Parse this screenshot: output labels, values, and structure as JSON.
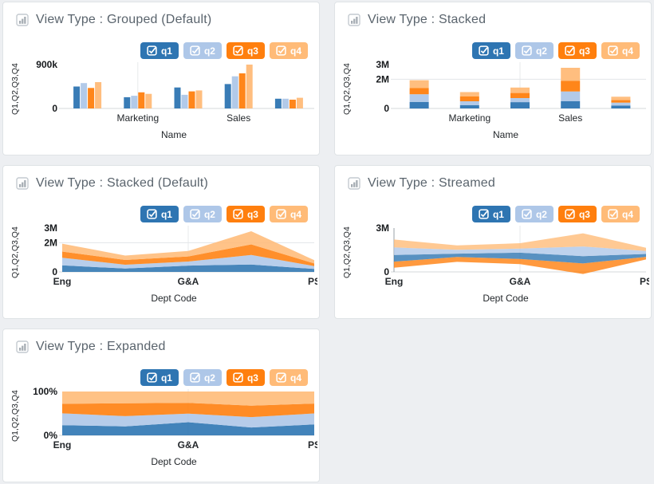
{
  "page": {
    "background_color": "#edeff2",
    "card_background": "#ffffff",
    "card_border_color": "#dfe3e6"
  },
  "colors": {
    "q1": "#2e75b2",
    "q2": "#aec7e8",
    "q3": "#ff7f0e",
    "q4": "#ffbb78"
  },
  "legend": {
    "position": "top-right",
    "items": [
      {
        "id": "q1",
        "label": "q1",
        "checked": true,
        "color": "#2e75b2",
        "text_color": "#ffffff"
      },
      {
        "id": "q2",
        "label": "q2",
        "checked": true,
        "color": "#aec7e8",
        "text_color": "#ffffff"
      },
      {
        "id": "q3",
        "label": "q3",
        "checked": true,
        "color": "#ff7f0e",
        "text_color": "#ffffff"
      },
      {
        "id": "q4",
        "label": "q4",
        "checked": true,
        "color": "#ffbb78",
        "text_color": "#ffffff"
      }
    ]
  },
  "chart_data": [
    {
      "type": "bar",
      "variant": "grouped",
      "title": "View Type : Grouped (Default)",
      "xlabel": "Name",
      "ylabel": "Q1,Q2,Q3,Q4",
      "categories": [
        "Eng",
        "Marketing",
        "G&A",
        "Sales",
        "PS"
      ],
      "visible_category_labels": [
        "Marketing",
        "Sales"
      ],
      "x_gridline_category": "Marketing",
      "series": [
        {
          "name": "q1",
          "color": "#2e75b2",
          "values": [
            450000,
            230000,
            430000,
            500000,
            200000
          ]
        },
        {
          "name": "q2",
          "color": "#aec7e8",
          "values": [
            520000,
            260000,
            280000,
            660000,
            200000
          ]
        },
        {
          "name": "q3",
          "color": "#ff7f0e",
          "values": [
            420000,
            330000,
            350000,
            720000,
            180000
          ]
        },
        {
          "name": "q4",
          "color": "#ffbb78",
          "values": [
            540000,
            300000,
            370000,
            900000,
            220000
          ]
        }
      ],
      "ylim": [
        0,
        900000
      ],
      "yticks": [
        {
          "value": 900000,
          "label": "900k"
        },
        {
          "value": 0,
          "label": "0"
        }
      ],
      "grid": true,
      "legend_position": "top-right"
    },
    {
      "type": "bar",
      "variant": "stacked",
      "title": "View Type : Stacked",
      "xlabel": "Name",
      "ylabel": "Q1,Q2,Q3,Q4",
      "categories": [
        "Eng",
        "Marketing",
        "G&A",
        "Sales",
        "PS"
      ],
      "visible_category_labels": [
        "Marketing",
        "Sales"
      ],
      "x_gridline_category": "G&A",
      "series": [
        {
          "name": "q1",
          "color": "#2e75b2",
          "values": [
            450000,
            230000,
            430000,
            500000,
            200000
          ]
        },
        {
          "name": "q2",
          "color": "#aec7e8",
          "values": [
            520000,
            260000,
            280000,
            660000,
            200000
          ]
        },
        {
          "name": "q3",
          "color": "#ff7f0e",
          "values": [
            420000,
            330000,
            350000,
            720000,
            180000
          ]
        },
        {
          "name": "q4",
          "color": "#ffbb78",
          "values": [
            540000,
            300000,
            370000,
            900000,
            220000
          ]
        }
      ],
      "ylim": [
        0,
        3000000
      ],
      "yticks": [
        {
          "value": 3000000,
          "label": "3M"
        },
        {
          "value": 2000000,
          "label": "2M"
        },
        {
          "value": 0,
          "label": "0"
        }
      ],
      "grid": true,
      "legend_position": "top-right"
    },
    {
      "type": "area",
      "variant": "stacked-area",
      "title": "View Type : Stacked (Default)",
      "xlabel": "Dept Code",
      "ylabel": "Q1,Q2,Q3,Q4",
      "categories": [
        "Eng",
        "Marketing",
        "G&A",
        "Sales",
        "PS"
      ],
      "visible_category_labels": [
        "Eng",
        "G&A",
        "PS"
      ],
      "x_gridline_category": "G&A",
      "series": [
        {
          "name": "q1",
          "color": "#2e75b2",
          "values": [
            450000,
            230000,
            430000,
            500000,
            200000
          ]
        },
        {
          "name": "q2",
          "color": "#aec7e8",
          "values": [
            520000,
            260000,
            280000,
            660000,
            200000
          ]
        },
        {
          "name": "q3",
          "color": "#ff7f0e",
          "values": [
            420000,
            330000,
            350000,
            720000,
            180000
          ]
        },
        {
          "name": "q4",
          "color": "#ffbb78",
          "values": [
            540000,
            300000,
            370000,
            900000,
            220000
          ]
        }
      ],
      "ylim": [
        0,
        3000000
      ],
      "yticks": [
        {
          "value": 3000000,
          "label": "3M"
        },
        {
          "value": 2000000,
          "label": "2M"
        },
        {
          "value": 0,
          "label": "0"
        }
      ],
      "grid": true,
      "legend_position": "top-right"
    },
    {
      "type": "area",
      "variant": "stream",
      "title": "View Type : Streamed",
      "xlabel": "Dept Code",
      "ylabel": "Q1,Q2,Q3,Q4",
      "categories": [
        "Eng",
        "Marketing",
        "G&A",
        "Sales",
        "PS"
      ],
      "visible_category_labels": [
        "Eng",
        "G&A",
        "PS"
      ],
      "x_gridline_category": "G&A",
      "stack_order": [
        "q3",
        "q1",
        "q2",
        "q4"
      ],
      "stream_center": 1250000,
      "series": [
        {
          "name": "q1",
          "color": "#2e75b2",
          "values": [
            450000,
            230000,
            430000,
            500000,
            200000
          ]
        },
        {
          "name": "q2",
          "color": "#aec7e8",
          "values": [
            520000,
            260000,
            280000,
            660000,
            200000
          ]
        },
        {
          "name": "q3",
          "color": "#ff7f0e",
          "values": [
            420000,
            330000,
            350000,
            720000,
            180000
          ]
        },
        {
          "name": "q4",
          "color": "#ffbb78",
          "values": [
            540000,
            300000,
            370000,
            900000,
            220000
          ]
        }
      ],
      "ylim": [
        0,
        3000000
      ],
      "yticks": [
        {
          "value": 3000000,
          "label": "3M"
        },
        {
          "value": 0,
          "label": "0"
        }
      ],
      "grid": true,
      "legend_position": "top-right"
    },
    {
      "type": "area",
      "variant": "expanded",
      "title": "View Type : Expanded",
      "xlabel": "Dept Code",
      "ylabel": "Q1,Q2,Q3,Q4",
      "categories": [
        "Eng",
        "Marketing",
        "G&A",
        "Sales",
        "PS"
      ],
      "visible_category_labels": [
        "Eng",
        "G&A",
        "PS"
      ],
      "x_gridline_category": "G&A",
      "series": [
        {
          "name": "q1",
          "color": "#2e75b2",
          "values": [
            450000,
            230000,
            430000,
            500000,
            200000
          ]
        },
        {
          "name": "q2",
          "color": "#aec7e8",
          "values": [
            520000,
            260000,
            280000,
            660000,
            200000
          ]
        },
        {
          "name": "q3",
          "color": "#ff7f0e",
          "values": [
            420000,
            330000,
            350000,
            720000,
            180000
          ]
        },
        {
          "name": "q4",
          "color": "#ffbb78",
          "values": [
            540000,
            300000,
            370000,
            900000,
            220000
          ]
        }
      ],
      "ylim": [
        0,
        1
      ],
      "yticks": [
        {
          "value": 1,
          "label": "100%"
        },
        {
          "value": 0,
          "label": "0%"
        }
      ],
      "grid": true,
      "legend_position": "top-right"
    }
  ]
}
